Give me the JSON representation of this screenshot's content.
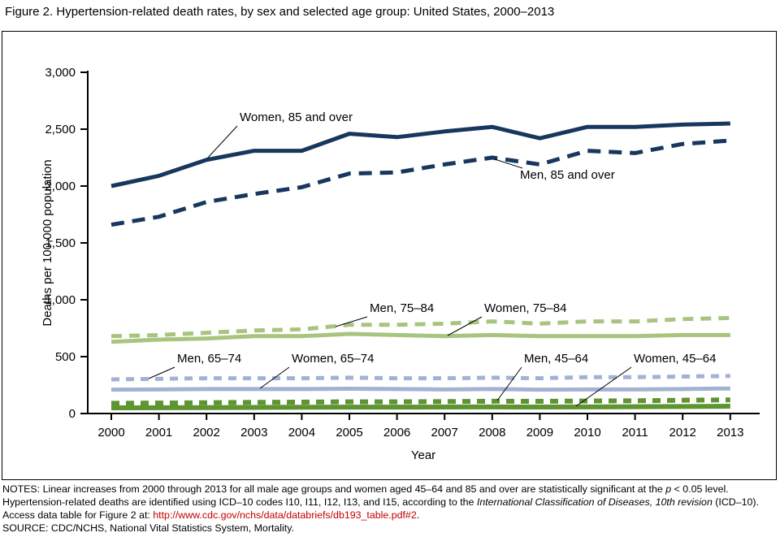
{
  "title": "Figure 2. Hypertension-related death rates, by sex and selected age group: United States, 2000–2013",
  "chart_data": {
    "type": "line",
    "title": "Figure 2. Hypertension-related death rates, by sex and selected age group: United States, 2000–2013",
    "xlabel": "Year",
    "ylabel": "Deaths per 100,000 population",
    "ylim": [
      0,
      3000
    ],
    "grid": false,
    "legend_position": "inline-annotations",
    "x": [
      2000,
      2001,
      2002,
      2003,
      2004,
      2005,
      2006,
      2007,
      2008,
      2009,
      2010,
      2011,
      2012,
      2013
    ],
    "yticks": [
      0,
      500,
      1000,
      1500,
      2000,
      2500,
      3000
    ],
    "ytick_labels": [
      "0",
      "500",
      "1,000",
      "1,500",
      "2,000",
      "2,500",
      "3,000"
    ],
    "series": [
      {
        "name": "Women, 85 and over",
        "color": "#17375e",
        "dash": null,
        "width": 5,
        "values": [
          2000,
          2090,
          2230,
          2310,
          2310,
          2460,
          2430,
          2480,
          2520,
          2420,
          2520,
          2520,
          2540,
          2550
        ]
      },
      {
        "name": "Men, 85 and over",
        "color": "#17375e",
        "dash": "16 10",
        "width": 5,
        "values": [
          1660,
          1730,
          1860,
          1930,
          1990,
          2110,
          2120,
          2190,
          2250,
          2190,
          2310,
          2290,
          2370,
          2400
        ]
      },
      {
        "name": "Men, 75–84",
        "color": "#a9c47f",
        "dash": "13 9",
        "width": 5,
        "values": [
          680,
          690,
          710,
          730,
          740,
          780,
          780,
          790,
          810,
          790,
          810,
          810,
          830,
          840
        ]
      },
      {
        "name": "Women, 75–84",
        "color": "#a9c47f",
        "dash": null,
        "width": 5,
        "values": [
          630,
          650,
          660,
          680,
          680,
          700,
          690,
          680,
          690,
          680,
          680,
          680,
          690,
          690
        ]
      },
      {
        "name": "Men, 65–74",
        "color": "#a3b2d2",
        "dash": "10 8",
        "width": 5,
        "values": [
          300,
          305,
          310,
          310,
          310,
          315,
          310,
          310,
          315,
          310,
          320,
          320,
          325,
          330
        ]
      },
      {
        "name": "Women, 65–74",
        "color": "#a3b2d2",
        "dash": null,
        "width": 5,
        "values": [
          210,
          212,
          215,
          215,
          215,
          218,
          215,
          212,
          215,
          210,
          212,
          212,
          215,
          220
        ]
      },
      {
        "name": "Men, 45–64",
        "color": "#5f9432",
        "dash": "10 8",
        "width": 6,
        "values": [
          90,
          92,
          95,
          98,
          100,
          103,
          103,
          105,
          108,
          107,
          110,
          112,
          117,
          120
        ]
      },
      {
        "name": "Women, 45–64",
        "color": "#5f9432",
        "dash": null,
        "width": 6,
        "values": [
          50,
          51,
          52,
          54,
          55,
          56,
          56,
          57,
          58,
          57,
          58,
          60,
          62,
          64
        ]
      }
    ],
    "annotations": [
      {
        "text": "Women, 85 and over",
        "label": [
          292,
          110
        ],
        "leader": [
          289,
          116,
          252,
          156
        ]
      },
      {
        "text": "Men, 85 and over",
        "label": [
          637,
          181
        ],
        "leader": [
          640,
          168,
          606,
          157
        ]
      },
      {
        "text": "Men, 75–84",
        "label": [
          452,
          345
        ],
        "leader": [
          449,
          351,
          410,
          363
        ]
      },
      {
        "text": "Women, 75–84",
        "label": [
          593,
          345
        ],
        "leader": [
          590,
          351,
          548,
          374
        ]
      },
      {
        "text": "Men, 65–74",
        "label": [
          215,
          407
        ],
        "leader": [
          212,
          413,
          180,
          427
        ]
      },
      {
        "text": "Women, 65–74",
        "label": [
          356,
          407
        ],
        "leader": [
          353,
          413,
          317,
          439
        ]
      },
      {
        "text": "Men, 45–64",
        "label": [
          642,
          407
        ],
        "leader": [
          639,
          413,
          609,
          454
        ]
      },
      {
        "text": "Women, 45–64",
        "label": [
          777,
          407
        ],
        "leader": [
          774,
          413,
          706,
          461
        ]
      }
    ]
  },
  "notes": {
    "part1": "NOTES: Linear increases from 2000 through 2013 for all male age groups and women aged 45–64 and 85 and over are statistically significant at the ",
    "italic1": "p",
    "part2": " < 0.05 level. Hypertension-related deaths are identified using ICD–10 codes I10, I11, I12, I13, and I15, according to the ",
    "italic2": "International Classification of Diseases, 10th revision",
    "part3": " (ICD–10). Access data table for Figure 2 at: ",
    "link": "http://www.cdc.gov/nchs/data/databriefs/db193_table.pdf#2",
    "part4": "."
  },
  "source": "SOURCE: CDC/NCHS, National Vital Statistics System, Mortality."
}
